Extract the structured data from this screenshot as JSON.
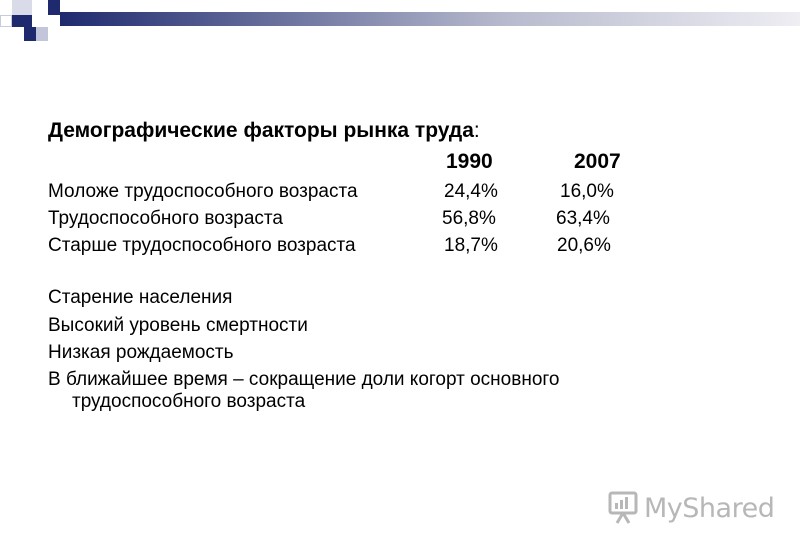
{
  "slide": {
    "title": "Демографические факторы рынка труда",
    "title_colon": ":",
    "years": [
      "1990",
      "2007"
    ],
    "rows": [
      {
        "label": "Моложе трудоспособного возраста",
        "v1990": "24,4%",
        "v2007": "16,0%"
      },
      {
        "label": "Трудоспособного возраста",
        "v1990": "56,8%",
        "v2007": "63,4%"
      },
      {
        "label": "Старше трудоспособного возраста",
        "v1990": "18,7%",
        "v2007": "20,6%"
      }
    ],
    "bullets": [
      "Старение населения",
      "Высокий уровень смертности",
      "Низкая рождаемость"
    ],
    "bullet_last_line1": "В ближайшее время – сокращение доли когорт основного",
    "bullet_last_line2": "трудоспособного возраста"
  },
  "watermark": {
    "text": "MyShared",
    "icon": "presentation-board-icon",
    "color": "#b7b7b7"
  },
  "colors": {
    "accent": "#1f2a6e",
    "text": "#000000",
    "background": "#ffffff"
  }
}
